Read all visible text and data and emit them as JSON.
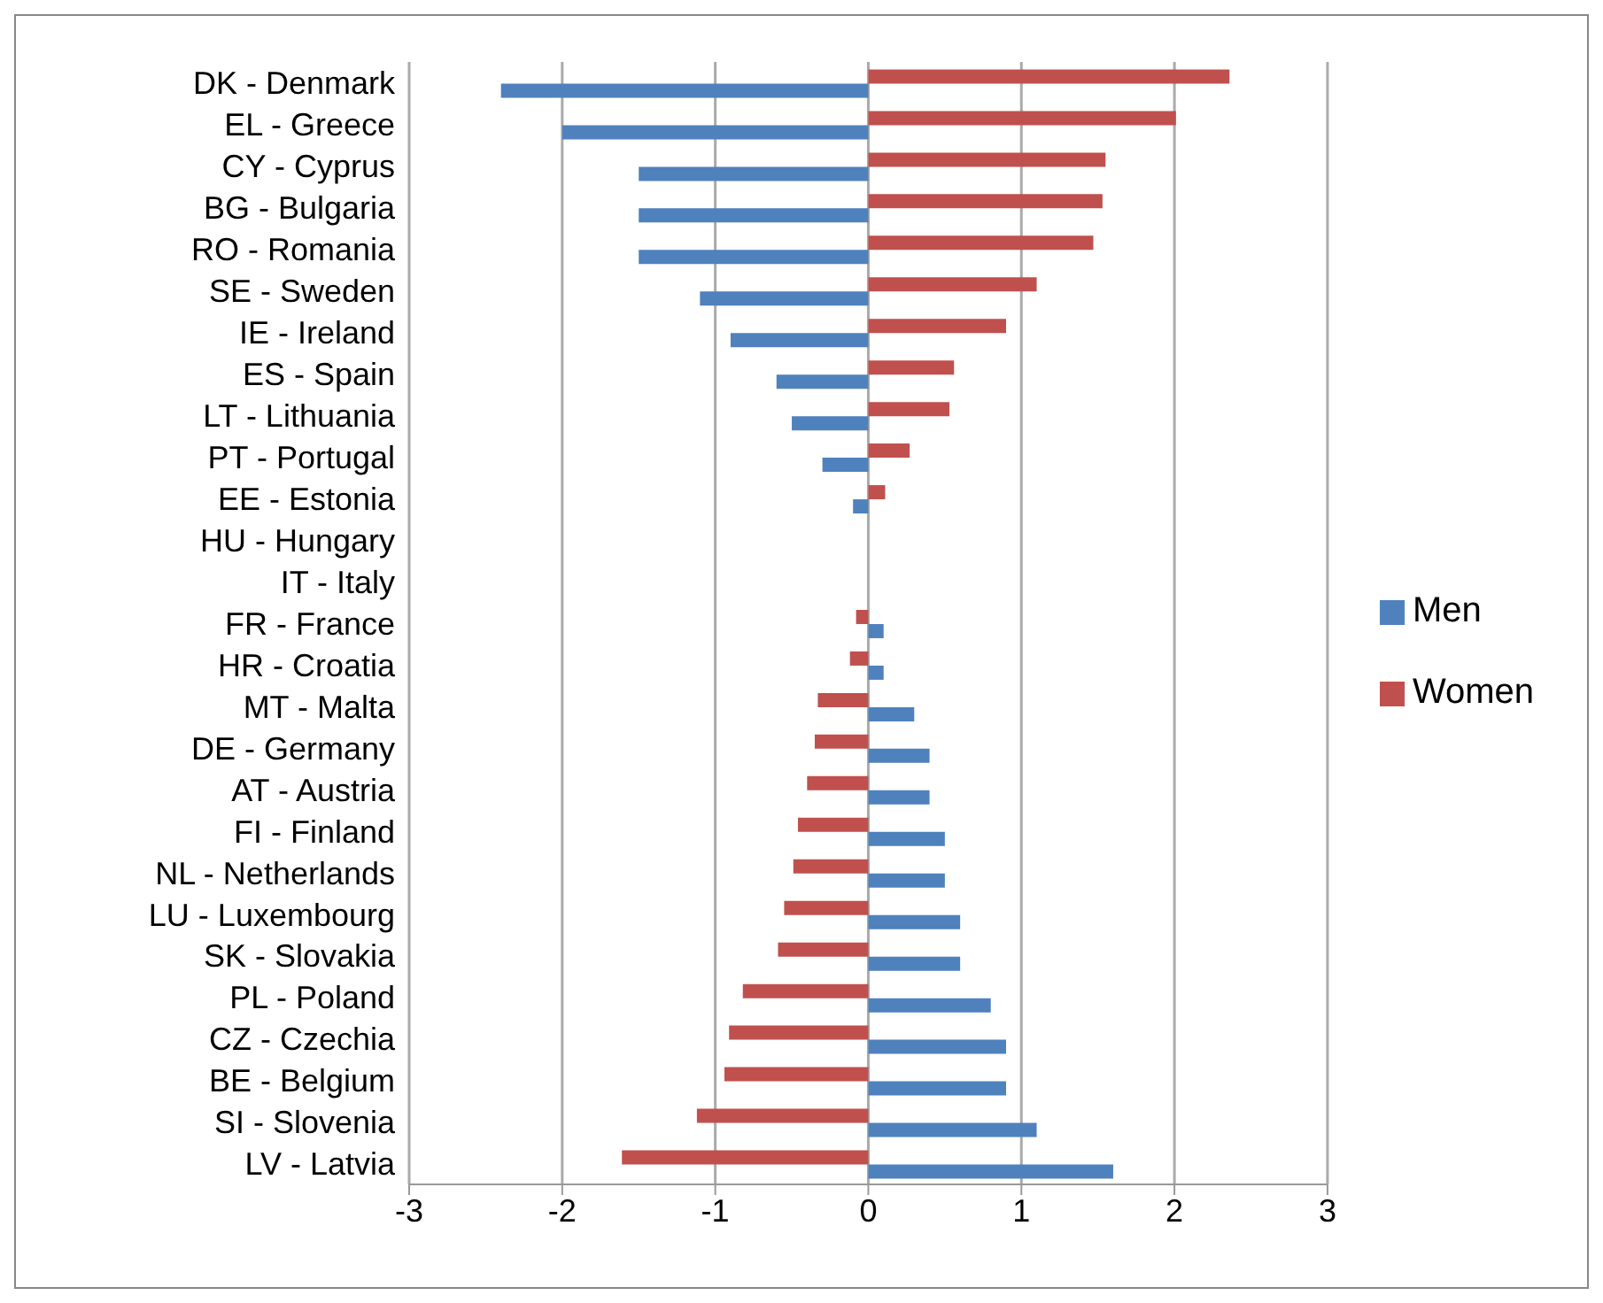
{
  "chart_data": {
    "type": "bar",
    "orientation": "horizontal",
    "categories": [
      "DK - Denmark",
      "EL - Greece",
      "CY - Cyprus",
      "BG - Bulgaria",
      "RO - Romania",
      "SE - Sweden",
      "IE - Ireland",
      "ES - Spain",
      "LT - Lithuania",
      "PT - Portugal",
      "EE - Estonia",
      "HU - Hungary",
      "IT - Italy",
      "FR - France",
      "HR - Croatia",
      "MT - Malta",
      "DE - Germany",
      "AT - Austria",
      "FI - Finland",
      "NL - Netherlands",
      "LU - Luxembourg",
      "SK - Slovakia",
      "PL - Poland",
      "CZ - Czechia",
      "BE - Belgium",
      "SI - Slovenia",
      "LV - Latvia"
    ],
    "series": [
      {
        "name": "Women",
        "color": "#c0504d",
        "values": [
          2.36,
          2.01,
          1.55,
          1.53,
          1.47,
          1.1,
          0.9,
          0.56,
          0.53,
          0.27,
          0.11,
          0,
          0,
          -0.08,
          -0.12,
          -0.33,
          -0.35,
          -0.4,
          -0.46,
          -0.49,
          -0.55,
          -0.59,
          -0.82,
          -0.91,
          -0.94,
          -1.12,
          -1.61
        ]
      },
      {
        "name": "Men",
        "color": "#4f81bd",
        "values": [
          -2.4,
          -2.0,
          -1.5,
          -1.5,
          -1.5,
          -1.1,
          -0.9,
          -0.6,
          -0.5,
          -0.3,
          -0.1,
          0,
          0,
          0.1,
          0.1,
          0.3,
          0.4,
          0.4,
          0.5,
          0.5,
          0.6,
          0.6,
          0.8,
          0.9,
          0.9,
          1.1,
          1.6
        ]
      }
    ],
    "xlim": [
      -3,
      3
    ],
    "xticks": [
      -3,
      -2,
      -1,
      0,
      1,
      2,
      3
    ],
    "grid": "x",
    "legend": "right"
  }
}
